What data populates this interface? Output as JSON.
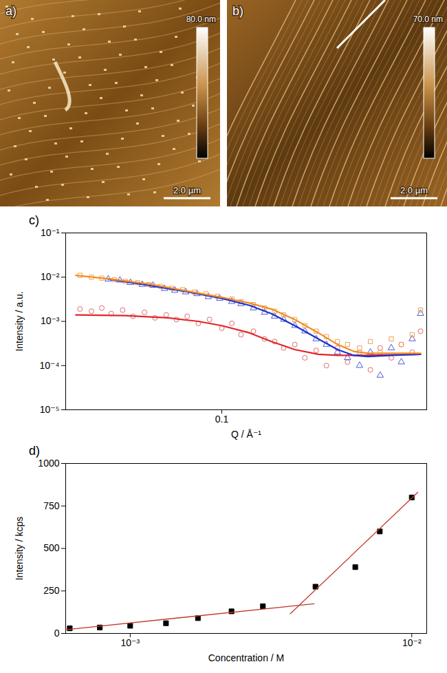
{
  "chart_data": [
    {
      "type": "image",
      "panel": "a)",
      "colorbar_label": "80.0 nm",
      "scale_bar_label": "2.0 µm"
    },
    {
      "type": "image",
      "panel": "b)",
      "colorbar_label": "70.0 nm",
      "scale_bar_label": "2.0 µm"
    },
    {
      "type": "scatter",
      "panel": "c)",
      "log": true,
      "x_label": "Q / Å⁻¹",
      "y_label": "Intensity / a.u.",
      "xlim": [
        0.0227,
        0.7
      ],
      "ylim": [
        1e-05,
        0.1
      ],
      "xticks": [
        0.1
      ],
      "yticks": [
        {
          "value": 1e-05,
          "label": "10⁻⁵"
        },
        {
          "value": 0.0001,
          "label": "10⁻⁴"
        },
        {
          "value": 0.001,
          "label": "10⁻³"
        },
        {
          "value": 0.01,
          "label": "10⁻²"
        },
        {
          "value": 0.1,
          "label": "10⁻¹"
        }
      ],
      "series": [
        {
          "type": "scatter",
          "marker": "circle_open",
          "color": "#e06b6b",
          "x": [
            0.026,
            0.029,
            0.032,
            0.035,
            0.039,
            0.043,
            0.048,
            0.053,
            0.059,
            0.065,
            0.072,
            0.08,
            0.089,
            0.1,
            0.11,
            0.12,
            0.135,
            0.15,
            0.165,
            0.18,
            0.2,
            0.22,
            0.245,
            0.27,
            0.3,
            0.33,
            0.37,
            0.41,
            0.45,
            0.5,
            0.55,
            0.61,
            0.66
          ],
          "values": [
            0.0019,
            0.0017,
            0.002,
            0.0015,
            0.0018,
            0.0013,
            0.0016,
            0.0012,
            0.0014,
            0.0011,
            0.0013,
            0.0009,
            0.0011,
            0.0007,
            0.0009,
            0.0005,
            0.0006,
            0.0004,
            0.00035,
            0.00025,
            0.0003,
            0.00015,
            0.00022,
            0.0001,
            0.00025,
            0.00012,
            0.0002,
            8e-05,
            0.00025,
            0.00015,
            0.0003,
            0.0002,
            0.0006
          ]
        },
        {
          "type": "scatter",
          "marker": "triangle_open",
          "color": "#4a5ad8",
          "x": [
            0.034,
            0.038,
            0.042,
            0.047,
            0.052,
            0.058,
            0.064,
            0.071,
            0.079,
            0.088,
            0.098,
            0.11,
            0.12,
            0.135,
            0.15,
            0.165,
            0.18,
            0.2,
            0.22,
            0.245,
            0.27,
            0.3,
            0.33,
            0.37,
            0.41,
            0.45,
            0.5,
            0.55,
            0.61,
            0.66
          ],
          "values": [
            0.009,
            0.0085,
            0.0075,
            0.0068,
            0.0065,
            0.0055,
            0.005,
            0.0046,
            0.0042,
            0.0036,
            0.0033,
            0.0028,
            0.0025,
            0.002,
            0.0016,
            0.0013,
            0.0011,
            0.0008,
            0.0006,
            0.0004,
            0.0003,
            0.0002,
            0.00015,
            0.0001,
            0.0002,
            6e-05,
            0.00025,
            0.00012,
            0.0004,
            0.0015
          ]
        },
        {
          "type": "scatter",
          "marker": "square_open",
          "color": "#f0a050",
          "x": [
            0.026,
            0.029,
            0.032,
            0.036,
            0.04,
            0.045,
            0.05,
            0.056,
            0.062,
            0.069,
            0.077,
            0.086,
            0.096,
            0.11,
            0.12,
            0.135,
            0.15,
            0.165,
            0.18,
            0.2,
            0.22,
            0.245,
            0.27,
            0.3,
            0.33,
            0.37,
            0.41,
            0.45,
            0.5,
            0.55,
            0.61,
            0.66
          ],
          "values": [
            0.011,
            0.01,
            0.0095,
            0.0088,
            0.008,
            0.0075,
            0.0068,
            0.0062,
            0.0056,
            0.0052,
            0.0046,
            0.0042,
            0.0037,
            0.0032,
            0.0028,
            0.0024,
            0.002,
            0.0017,
            0.0014,
            0.0011,
            0.0008,
            0.0006,
            0.00045,
            0.00035,
            0.0003,
            0.00025,
            0.00035,
            0.0002,
            0.0004,
            0.0003,
            0.0005,
            0.0018
          ]
        },
        {
          "type": "line",
          "color": "#e0262b",
          "x": [
            0.025,
            0.04,
            0.06,
            0.08,
            0.1,
            0.13,
            0.16,
            0.2,
            0.25,
            0.3,
            0.4,
            0.5,
            0.66
          ],
          "values": [
            0.0014,
            0.00135,
            0.0012,
            0.001,
            0.0008,
            0.00055,
            0.00035,
            0.00023,
            0.00018,
            0.00017,
            0.00017,
            0.000175,
            0.00018
          ]
        },
        {
          "type": "line",
          "color": "#1f2fd0",
          "x": [
            0.034,
            0.05,
            0.07,
            0.1,
            0.13,
            0.16,
            0.2,
            0.25,
            0.3,
            0.35,
            0.4,
            0.5,
            0.66
          ],
          "values": [
            0.009,
            0.0065,
            0.0048,
            0.0033,
            0.0023,
            0.0015,
            0.0008,
            0.0004,
            0.00023,
            0.00017,
            0.00016,
            0.00017,
            0.00018
          ]
        },
        {
          "type": "line",
          "color": "#f28c1e",
          "x": [
            0.025,
            0.035,
            0.05,
            0.07,
            0.1,
            0.13,
            0.16,
            0.2,
            0.25,
            0.3,
            0.35,
            0.4,
            0.5,
            0.66
          ],
          "values": [
            0.011,
            0.009,
            0.007,
            0.005,
            0.0035,
            0.0026,
            0.0019,
            0.0011,
            0.00055,
            0.0003,
            0.00021,
            0.00019,
            0.00019,
            0.00019
          ]
        }
      ]
    },
    {
      "type": "scatter",
      "panel": "d)",
      "log": "x",
      "x_label": "Concentration / M",
      "y_label": "Intensity / kcps",
      "xlim": [
        0.00059,
        0.0113
      ],
      "ylim": [
        0,
        1000
      ],
      "xticks": [
        {
          "value": 0.001,
          "label": "10⁻³"
        },
        {
          "value": 0.01,
          "label": "10⁻²"
        }
      ],
      "yticks": [
        0,
        250,
        500,
        750,
        1000
      ],
      "series": [
        {
          "type": "scatter",
          "marker": "square",
          "color": "#000000",
          "x": [
            0.00061,
            0.00078,
            0.001,
            0.00134,
            0.00174,
            0.00229,
            0.00296,
            0.00455,
            0.0063,
            0.0077,
            0.01
          ],
          "values": [
            30,
            35,
            45,
            60,
            90,
            130,
            160,
            275,
            390,
            600,
            800
          ]
        },
        {
          "type": "line",
          "color": "#c0392b",
          "x": [
            0.00059,
            0.0045
          ],
          "values": [
            22,
            175
          ]
        },
        {
          "type": "line",
          "color": "#c0392b",
          "x": [
            0.0037,
            0.0105
          ],
          "values": [
            115,
            830
          ]
        }
      ]
    }
  ]
}
